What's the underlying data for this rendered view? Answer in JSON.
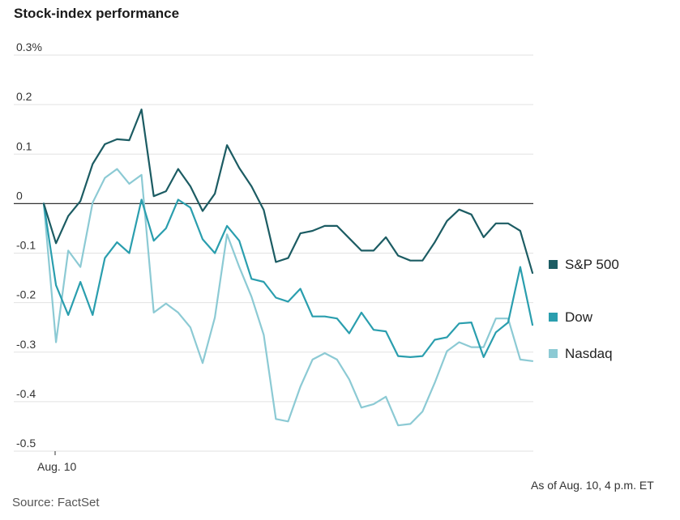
{
  "chart_data": {
    "type": "line",
    "title": "Stock-index performance",
    "xlabel": "",
    "ylabel": "",
    "ylim": [
      -0.5,
      0.3
    ],
    "y_ticks": [
      {
        "value": 0.3,
        "label": "0.3%"
      },
      {
        "value": 0.2,
        "label": "0.2"
      },
      {
        "value": 0.1,
        "label": "0.1"
      },
      {
        "value": 0,
        "label": "0"
      },
      {
        "value": -0.1,
        "label": "-0.1"
      },
      {
        "value": -0.2,
        "label": "-0.2"
      },
      {
        "value": -0.3,
        "label": "-0.3"
      },
      {
        "value": -0.4,
        "label": "-0.4"
      },
      {
        "value": -0.5,
        "label": "-0.5"
      }
    ],
    "x_tick_label": "Aug. 10",
    "grid": true,
    "legend_position": "right",
    "series": [
      {
        "name": "S&P 500",
        "color": "#1c5c63",
        "values": [
          0,
          -0.08,
          -0.025,
          0.005,
          0.08,
          0.12,
          0.13,
          0.128,
          0.19,
          0.015,
          0.025,
          0.07,
          0.035,
          -0.015,
          0.02,
          0.118,
          0.072,
          0.035,
          -0.013,
          -0.118,
          -0.11,
          -0.06,
          -0.055,
          -0.045,
          -0.045,
          -0.07,
          -0.095,
          -0.095,
          -0.068,
          -0.105,
          -0.115,
          -0.115,
          -0.078,
          -0.035,
          -0.012,
          -0.022,
          -0.068,
          -0.04,
          -0.04,
          -0.055,
          -0.14
        ]
      },
      {
        "name": "Dow",
        "color": "#2a9eae",
        "values": [
          0,
          -0.165,
          -0.225,
          -0.158,
          -0.225,
          -0.11,
          -0.078,
          -0.1,
          0.008,
          -0.075,
          -0.05,
          0.008,
          -0.008,
          -0.072,
          -0.1,
          -0.045,
          -0.075,
          -0.152,
          -0.158,
          -0.19,
          -0.198,
          -0.172,
          -0.228,
          -0.228,
          -0.232,
          -0.262,
          -0.22,
          -0.255,
          -0.258,
          -0.308,
          -0.31,
          -0.308,
          -0.275,
          -0.27,
          -0.242,
          -0.24,
          -0.31,
          -0.26,
          -0.24,
          -0.128,
          -0.245
        ]
      },
      {
        "name": "Nasdaq",
        "color": "#8ccad4",
        "values": [
          0,
          -0.28,
          -0.095,
          -0.128,
          0.002,
          0.052,
          0.07,
          0.04,
          0.058,
          -0.22,
          -0.202,
          -0.22,
          -0.25,
          -0.322,
          -0.23,
          -0.062,
          -0.128,
          -0.188,
          -0.265,
          -0.435,
          -0.44,
          -0.37,
          -0.315,
          -0.302,
          -0.315,
          -0.355,
          -0.412,
          -0.405,
          -0.39,
          -0.448,
          -0.445,
          -0.42,
          -0.362,
          -0.298,
          -0.28,
          -0.29,
          -0.29,
          -0.232,
          -0.232,
          -0.315,
          -0.318
        ]
      }
    ],
    "annotations": [
      "As of Aug. 10, 4 p.m. ET"
    ]
  },
  "footer": {
    "source": "Source: FactSet",
    "as_of": "As of Aug. 10, 4 p.m. ET"
  }
}
